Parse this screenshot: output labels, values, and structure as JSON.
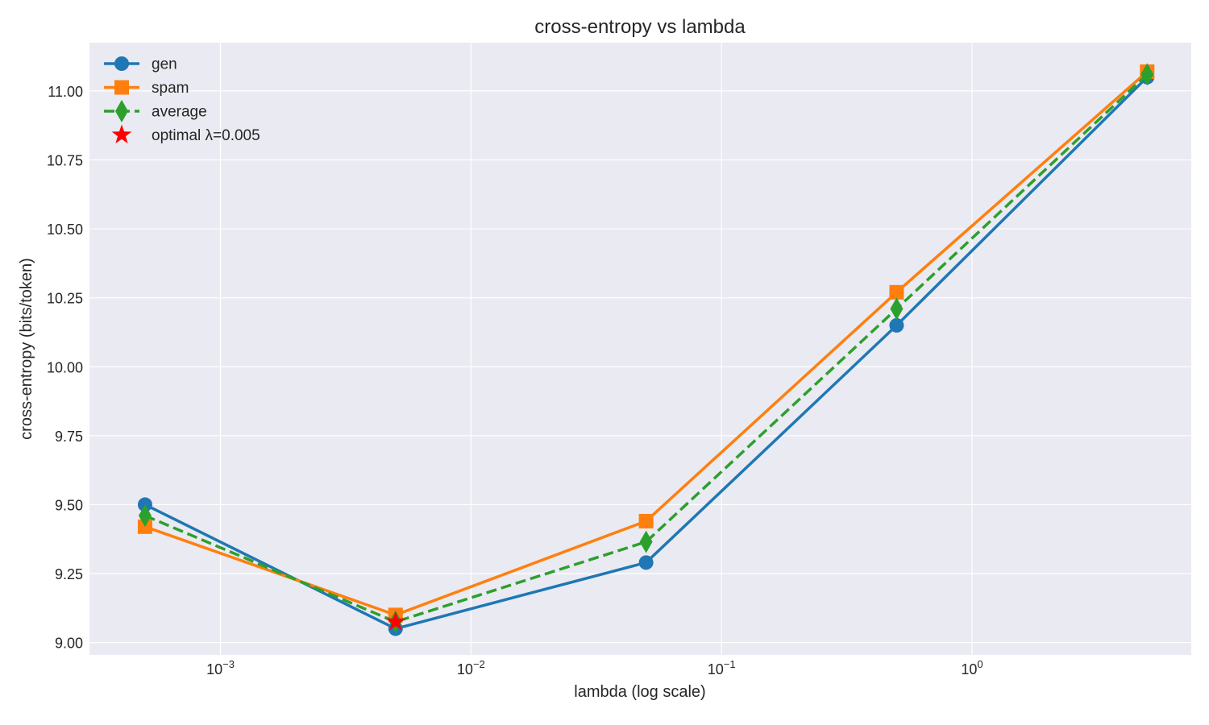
{
  "chart_data": {
    "type": "line",
    "title": "cross-entropy vs lambda",
    "xlabel": "lambda (log scale)",
    "ylabel": "cross-entropy (bits/token)",
    "xscale": "log",
    "xlim": [
      0.0003,
      7.5
    ],
    "ylim": [
      8.955,
      11.175
    ],
    "grid": true,
    "legend_position": "top-left",
    "x": [
      0.0005,
      0.005,
      0.05,
      0.5,
      5
    ],
    "xticks": [
      0.001,
      0.01,
      0.1,
      1
    ],
    "xtick_labels": [
      {
        "base": "10",
        "exp": "−3"
      },
      {
        "base": "10",
        "exp": "−2"
      },
      {
        "base": "10",
        "exp": "−1"
      },
      {
        "base": "10",
        "exp": "0"
      }
    ],
    "yticks": [
      9.0,
      9.25,
      9.5,
      9.75,
      10.0,
      10.25,
      10.5,
      10.75,
      11.0
    ],
    "ytick_labels": [
      "9.00",
      "9.25",
      "9.50",
      "9.75",
      "10.00",
      "10.25",
      "10.50",
      "10.75",
      "11.00"
    ],
    "series": [
      {
        "name": "gen",
        "values": [
          9.5,
          9.05,
          9.29,
          10.15,
          11.05
        ],
        "color": "#1f77b4",
        "marker": "circle",
        "line_style": "solid"
      },
      {
        "name": "spam",
        "values": [
          9.42,
          9.1,
          9.44,
          10.27,
          11.07
        ],
        "color": "#ff7f0e",
        "marker": "square",
        "line_style": "solid"
      },
      {
        "name": "average",
        "values": [
          9.46,
          9.075,
          9.365,
          10.21,
          11.06
        ],
        "color": "#2ca02c",
        "marker": "diamond",
        "line_style": "dashed"
      }
    ],
    "optimal": {
      "name": "optimal λ=0.005",
      "x": 0.005,
      "y": 9.075,
      "color": "#ff0000",
      "marker": "star"
    }
  }
}
